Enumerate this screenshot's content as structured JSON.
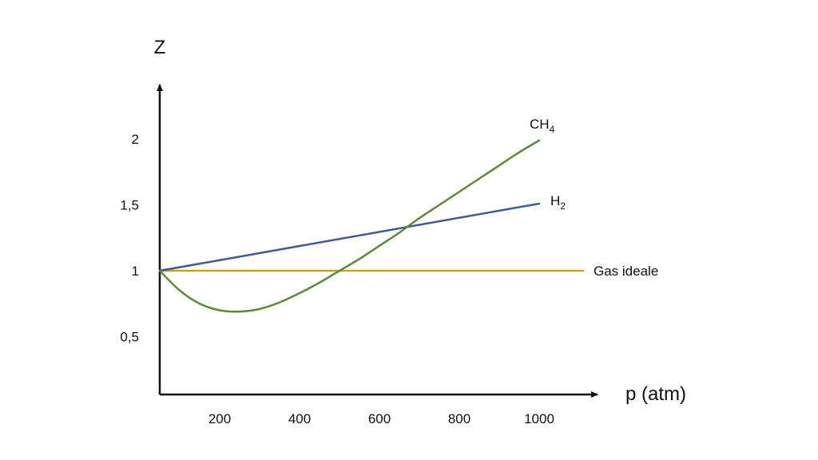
{
  "chart_data": {
    "type": "line",
    "xlabel": "p (atm)",
    "ylabel": "Z",
    "xlim": [
      50,
      1150
    ],
    "ylim": [
      0.06,
      2.45
    ],
    "x_ticks": [
      {
        "value": 200,
        "label": "200"
      },
      {
        "value": 400,
        "label": "400"
      },
      {
        "value": 600,
        "label": "600"
      },
      {
        "value": 800,
        "label": "800"
      },
      {
        "value": 1000,
        "label": "1000"
      }
    ],
    "y_ticks": [
      {
        "value": 0.5,
        "label": "0,5"
      },
      {
        "value": 1,
        "label": "1"
      },
      {
        "value": 1.5,
        "label": "1,5"
      },
      {
        "value": 2,
        "label": "2"
      }
    ],
    "grid": false,
    "legend": "none",
    "series": [
      {
        "key": "ideal",
        "label": "Gas ideale",
        "color": "#c8a518",
        "x": [
          50,
          1110
        ],
        "y": [
          1,
          1
        ]
      },
      {
        "key": "h2",
        "label": "H",
        "label_sub": "2",
        "color": "#3c5a9c",
        "x": [
          50,
          1000
        ],
        "y": [
          1,
          1.51
        ]
      },
      {
        "key": "ch4",
        "label": "CH",
        "label_sub": "4",
        "color": "#5a8c36",
        "x": [
          50,
          100,
          150,
          200,
          250,
          300,
          350,
          400,
          450,
          500,
          550,
          600,
          650,
          700,
          750,
          800,
          850,
          900,
          950,
          1000
        ],
        "y": [
          1,
          0.85,
          0.75,
          0.7,
          0.69,
          0.71,
          0.76,
          0.83,
          0.91,
          1.0,
          1.09,
          1.19,
          1.29,
          1.4,
          1.5,
          1.6,
          1.7,
          1.8,
          1.9,
          1.99
        ]
      }
    ]
  }
}
